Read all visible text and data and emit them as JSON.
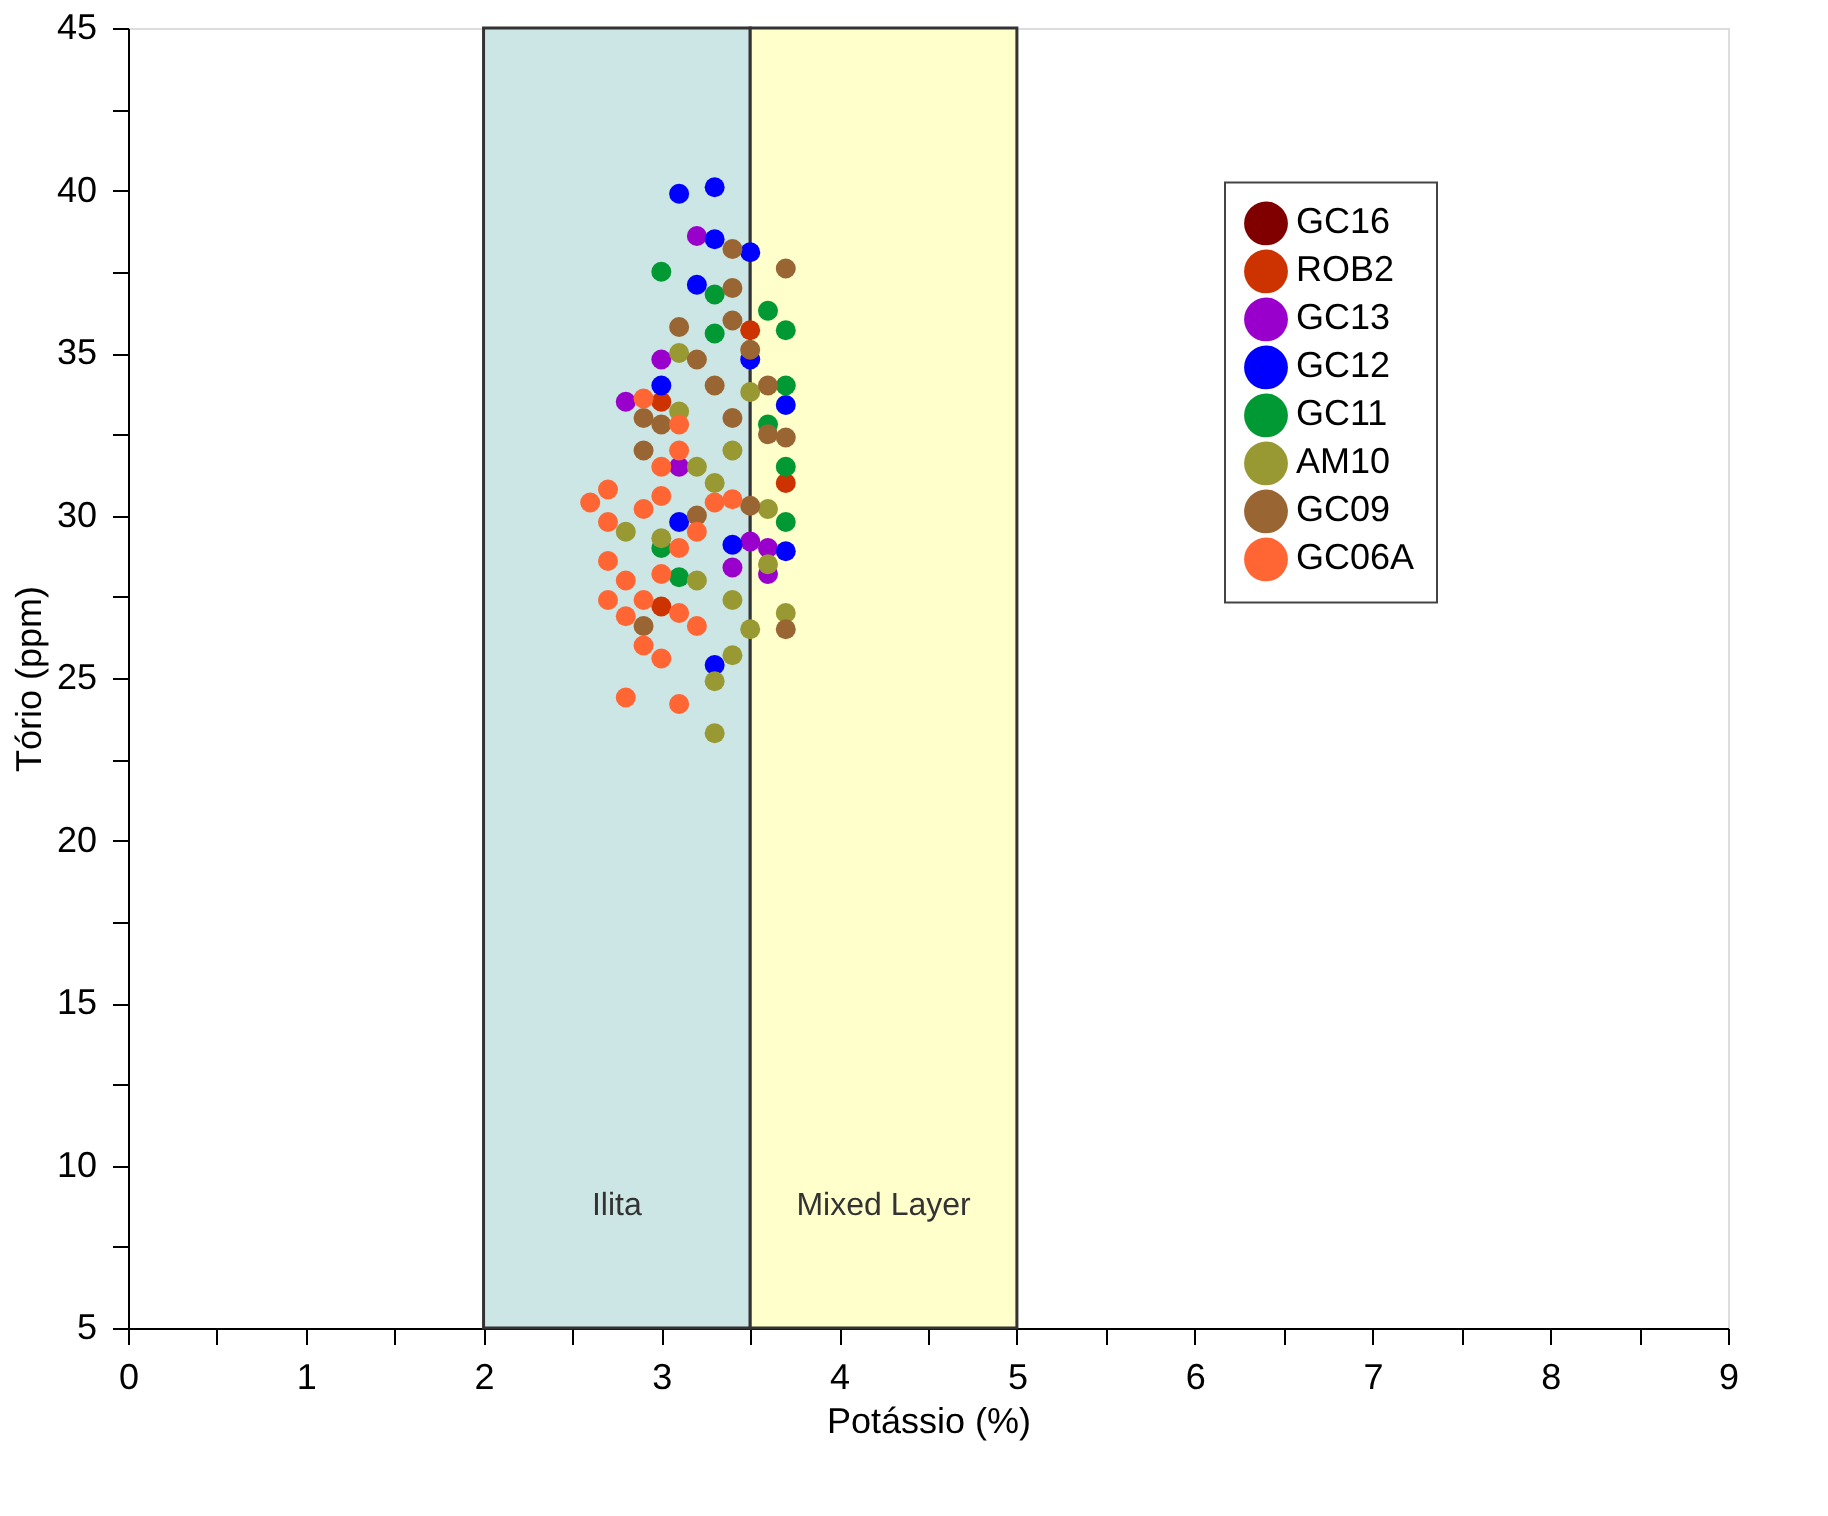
{
  "chart_data": {
    "type": "scatter",
    "xlabel": "Potássio (%)",
    "ylabel": "Tório (ppm)",
    "xlim": [
      0,
      9
    ],
    "ylim": [
      5,
      45
    ],
    "xticks": [
      0,
      {
        "value": 0.5,
        "label": null
      },
      1,
      {
        "value": 1.5,
        "label": null
      },
      2,
      {
        "value": 2.5,
        "label": null
      },
      3,
      {
        "value": 3.5,
        "label": null
      },
      4,
      {
        "value": 4.5,
        "label": null
      },
      5,
      {
        "value": 5.5,
        "label": null
      },
      6,
      {
        "value": 6.5,
        "label": null
      },
      7,
      {
        "value": 7.5,
        "label": null
      },
      8,
      {
        "value": 8.5,
        "label": null
      },
      9
    ],
    "yticks": [
      5,
      {
        "value": 7.5,
        "label": null
      },
      10,
      {
        "value": 12.5,
        "label": null
      },
      15,
      {
        "value": 17.5,
        "label": null
      },
      20,
      {
        "value": 22.5,
        "label": null
      },
      25,
      {
        "value": 27.5,
        "label": null
      },
      30,
      {
        "value": 32.5,
        "label": null
      },
      35,
      {
        "value": 37.5,
        "label": null
      },
      40,
      {
        "value": 42.5,
        "label": null
      },
      45
    ],
    "grid": false,
    "legend": "top right",
    "marker": "circle",
    "bands": [
      {
        "axis": "x",
        "from": 2,
        "to": 3.5,
        "label": "Ilita",
        "color": "#cce5e5"
      },
      {
        "axis": "x",
        "from": 3.5,
        "to": 5,
        "label": "Mixed Layer",
        "color": "#ffffcc"
      }
    ],
    "series": [
      {
        "name": "GC16",
        "color": "#800000"
      },
      {
        "name": "ROB2",
        "color": "#cc3300",
        "x": [
          3.7,
          3.0,
          3.5,
          3.0
        ],
        "values": [
          31.0,
          33.5,
          35.7,
          27.2
        ]
      },
      {
        "name": "GC13",
        "color": "#9900cc",
        "x": [
          3.2,
          3.0,
          2.8,
          3.5,
          3.6,
          3.4,
          3.6,
          3.1
        ],
        "values": [
          38.6,
          34.8,
          33.5,
          29.2,
          28.2,
          28.4,
          29.0,
          31.5
        ]
      },
      {
        "name": "GC12",
        "color": "#0000ff",
        "x": [
          3.1,
          3.3,
          3.5,
          3.3,
          3.2,
          3.5,
          3.7,
          3.7,
          3.3,
          3.1,
          3.4,
          3.0
        ],
        "values": [
          39.9,
          40.1,
          38.1,
          38.5,
          37.1,
          34.8,
          33.4,
          28.9,
          25.4,
          29.8,
          29.1,
          34.0
        ]
      },
      {
        "name": "GC11",
        "color": "#009933",
        "x": [
          3.0,
          3.3,
          3.6,
          3.7,
          3.7,
          3.3,
          3.7,
          3.7,
          3.1,
          3.0,
          3.6
        ],
        "values": [
          37.5,
          36.8,
          36.3,
          35.7,
          34.0,
          35.6,
          31.5,
          29.8,
          28.1,
          29.0,
          32.8
        ]
      },
      {
        "name": "AM10",
        "color": "#999933",
        "x": [
          3.3,
          3.3,
          3.4,
          3.7,
          3.5,
          3.2,
          3.0,
          3.3,
          3.4,
          3.1,
          3.1,
          3.2,
          3.6,
          3.5,
          2.8,
          3.6,
          3.4
        ],
        "values": [
          23.3,
          24.9,
          25.7,
          27.0,
          26.5,
          28.0,
          29.3,
          31.0,
          32.0,
          33.2,
          35.0,
          31.5,
          30.2,
          33.8,
          29.5,
          28.5,
          27.4
        ]
      },
      {
        "name": "GC09",
        "color": "#996633",
        "x": [
          3.7,
          3.4,
          3.4,
          3.4,
          3.5,
          3.2,
          3.1,
          3.3,
          3.4,
          3.6,
          3.7,
          3.0,
          3.2,
          2.9,
          3.7,
          2.9,
          3.5,
          3.6,
          2.9
        ],
        "values": [
          37.6,
          38.2,
          37.0,
          36.0,
          35.1,
          34.8,
          35.8,
          34.0,
          33.0,
          32.5,
          32.4,
          32.8,
          30.0,
          32.0,
          26.5,
          26.6,
          30.3,
          34.0,
          33.0
        ]
      },
      {
        "name": "GC06A",
        "color": "#ff6633",
        "x": [
          2.8,
          3.1,
          2.6,
          2.7,
          2.7,
          2.7,
          2.7,
          2.8,
          2.9,
          3.0,
          2.9,
          3.0,
          3.1,
          2.9,
          3.0,
          3.2,
          3.3,
          3.1,
          3.2,
          2.8,
          3.1,
          3.0,
          2.9,
          3.4,
          3.1
        ],
        "values": [
          24.4,
          24.2,
          30.4,
          30.8,
          29.8,
          28.6,
          27.4,
          26.9,
          26.0,
          25.6,
          27.4,
          28.2,
          29.0,
          30.2,
          30.6,
          29.5,
          30.4,
          27.0,
          26.6,
          28.0,
          32.0,
          31.5,
          33.6,
          30.5,
          32.8
        ]
      }
    ]
  }
}
